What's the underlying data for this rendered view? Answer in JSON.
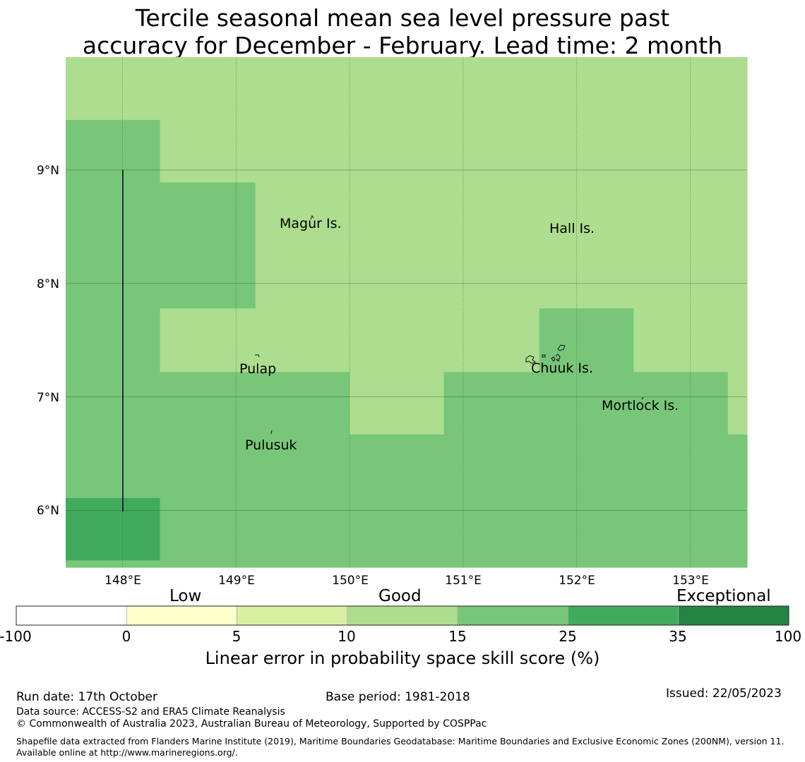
{
  "title": {
    "line1": "Tercile seasonal mean sea level pressure past",
    "line2": "accuracy for December - February. Lead time: 2 month"
  },
  "map": {
    "lon_ticks": [
      "148°E",
      "149°E",
      "150°E",
      "151°E",
      "152°E",
      "153°E"
    ],
    "lat_ticks": [
      "9°N",
      "8°N",
      "7°N",
      "6°N"
    ],
    "places": [
      "Magur Is.",
      "Hall Is.",
      "Pulap",
      "Chuuk Is.",
      "Mortlock Is.",
      "Pulusuk"
    ],
    "skill_cells": {
      "lon_edges": [
        147.5,
        148.33,
        149.17,
        150.0,
        150.83,
        151.67,
        152.5,
        153.33,
        153.5
      ],
      "lat_edges": [
        9.94,
        9.44,
        8.89,
        7.78,
        7.22,
        6.67,
        6.11,
        5.56,
        5.5
      ],
      "categories_north_to_south": [
        [
          3,
          3,
          3,
          3,
          3,
          3,
          3,
          3
        ],
        [
          4,
          3,
          3,
          3,
          3,
          3,
          3,
          3
        ],
        [
          4,
          4,
          3,
          3,
          3,
          3,
          3,
          3
        ],
        [
          4,
          3,
          3,
          3,
          3,
          4,
          3,
          3
        ],
        [
          4,
          4,
          4,
          3,
          4,
          4,
          4,
          3
        ],
        [
          4,
          4,
          4,
          4,
          4,
          4,
          4,
          4
        ],
        [
          5,
          4,
          4,
          4,
          4,
          4,
          4,
          4
        ],
        [
          4,
          4,
          4,
          4,
          4,
          4,
          4,
          4
        ]
      ]
    }
  },
  "colorbar": {
    "category_labels": [
      "Low",
      "Good",
      "Exceptional"
    ],
    "ticks": [
      "-100",
      "0",
      "5",
      "10",
      "15",
      "25",
      "35",
      "100"
    ],
    "colors": [
      "#ffffff",
      "#ffffcc",
      "#d9f0a3",
      "#addd8e",
      "#78c679",
      "#41ab5d",
      "#238443"
    ],
    "title": "Linear error in probability space skill score (%)"
  },
  "footer": {
    "run_date": "Run date: 17th October",
    "base_period": "Base period: 1981-2018",
    "issued": "Issued: 22/05/2023",
    "data_source": "Data source: ACCESS-S2 and ERA5 Climate Reanalysis",
    "copyright": "© Commonwealth of Australia 2023, Australian Bureau of Meteorology, Supported by COSPPac",
    "shapefile": "Shapefile data extracted from Flanders Marine Institute (2019), Maritime Boundaries Geodatabase: Maritime Boundaries and Exclusive Economic Zones (200NM), version 11. Available online at http://www.marineregions.org/."
  }
}
